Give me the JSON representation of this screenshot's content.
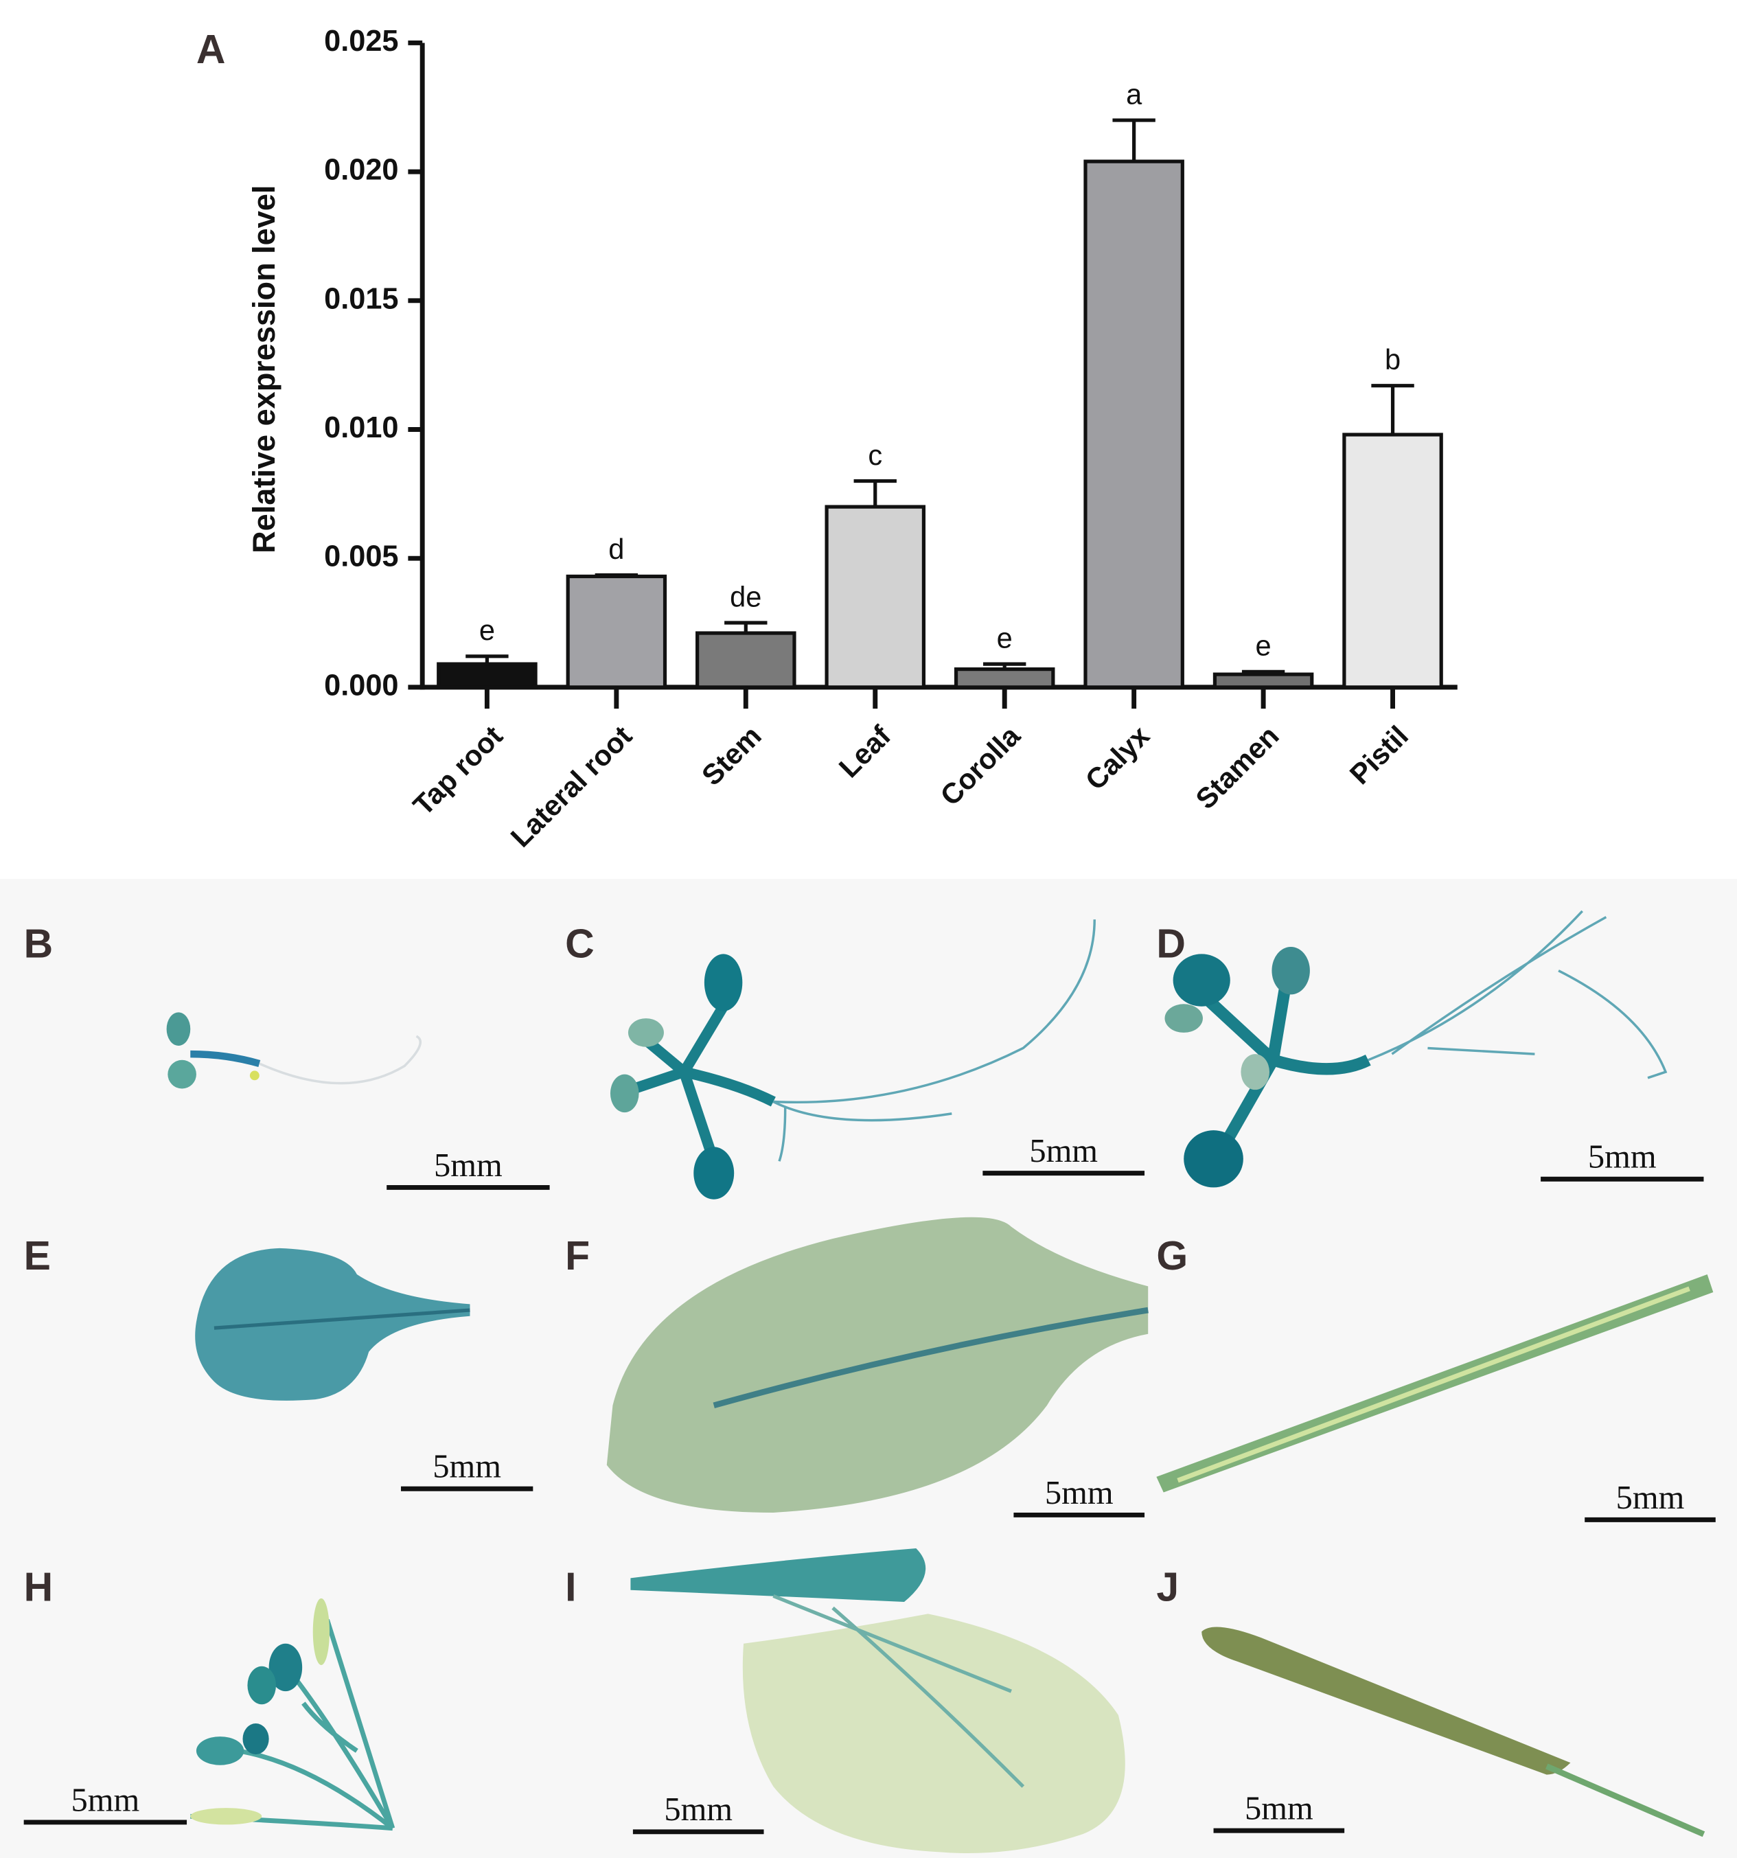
{
  "chart_data": {
    "type": "bar",
    "panel_label": "A",
    "y_label": "Relative expression level",
    "categories": [
      "Tap root",
      "Lateral root",
      "Stem",
      "Leaf",
      "Corolla",
      "Calyx",
      "Stamen",
      "Pistil"
    ],
    "values": [
      0.0009,
      0.0043,
      0.0021,
      0.007,
      0.0007,
      0.0204,
      0.0005,
      0.0098
    ],
    "errors": [
      0.0003,
      5e-05,
      0.0004,
      0.001,
      0.0002,
      0.0016,
      0.0001,
      0.0019
    ],
    "letters": [
      "e",
      "d",
      "de",
      "c",
      "e",
      "a",
      "e",
      "b"
    ],
    "colors": [
      "#111111",
      "#a2a2a6",
      "#7a7a7a",
      "#d2d2d2",
      "#7a7a7a",
      "#9e9ea2",
      "#707070",
      "#e8e8e8"
    ],
    "ylim": [
      0,
      0.025
    ],
    "yticks": [
      {
        "value": 0,
        "label": "0.000"
      },
      {
        "value": 0.005,
        "label": "0.005"
      },
      {
        "value": 0.01,
        "label": "0.010"
      },
      {
        "value": 0.015,
        "label": "0.015"
      },
      {
        "value": 0.02,
        "label": "0.020"
      },
      {
        "value": 0.025,
        "label": "0.025"
      }
    ],
    "grid": false
  },
  "panels": [
    {
      "label": "B",
      "scale_bar": "5mm"
    },
    {
      "label": "C",
      "scale_bar": "5mm"
    },
    {
      "label": "D",
      "scale_bar": "5mm"
    },
    {
      "label": "E",
      "scale_bar": "5mm"
    },
    {
      "label": "F",
      "scale_bar": "5mm"
    },
    {
      "label": "G",
      "scale_bar": "5mm"
    },
    {
      "label": "H",
      "scale_bar": "5mm"
    },
    {
      "label": "I",
      "scale_bar": "5mm"
    },
    {
      "label": "J",
      "scale_bar": "5mm"
    }
  ]
}
